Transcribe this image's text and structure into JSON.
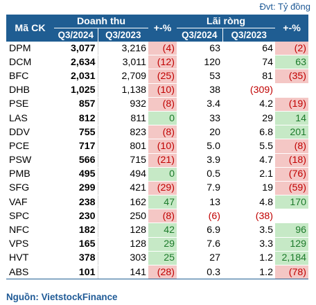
{
  "unit_note": "Đvt: Tỷ đồng",
  "header": {
    "ticker": "Mã CK",
    "revenue_group": "Doanh thu",
    "revenue_change": "+-%",
    "profit_group": "Lãi ròng",
    "profit_change": "+-%",
    "q3_2024": "Q3/2024",
    "q3_2023": "Q3/2023"
  },
  "rows": [
    {
      "ticker": "DPM",
      "rev24": "3,077",
      "rev23": "3,216",
      "rev_chg": "(4)",
      "rev_dir": "neg",
      "np24": "63",
      "np23": "64",
      "np_chg": "(2)",
      "np_dir": "neg"
    },
    {
      "ticker": "DCM",
      "rev24": "2,634",
      "rev23": "3,011",
      "rev_chg": "(12)",
      "rev_dir": "neg",
      "np24": "120",
      "np23": "74",
      "np_chg": "63",
      "np_dir": "pos"
    },
    {
      "ticker": "BFC",
      "rev24": "2,031",
      "rev23": "2,709",
      "rev_chg": "(25)",
      "rev_dir": "neg",
      "np24": "53",
      "np23": "81",
      "np_chg": "(35)",
      "np_dir": "neg"
    },
    {
      "ticker": "DHB",
      "rev24": "1,025",
      "rev23": "1,138",
      "rev_chg": "(10)",
      "rev_dir": "neg",
      "np24": "38",
      "np23": "(309)",
      "np_chg": "",
      "np_dir": "none"
    },
    {
      "ticker": "PSE",
      "rev24": "857",
      "rev23": "932",
      "rev_chg": "(8)",
      "rev_dir": "neg",
      "np24": "3.4",
      "np23": "4.2",
      "np_chg": "(19)",
      "np_dir": "neg"
    },
    {
      "ticker": "LAS",
      "rev24": "812",
      "rev23": "811",
      "rev_chg": "0",
      "rev_dir": "pos",
      "np24": "33",
      "np23": "29",
      "np_chg": "14",
      "np_dir": "pos"
    },
    {
      "ticker": "DDV",
      "rev24": "755",
      "rev23": "823",
      "rev_chg": "(8)",
      "rev_dir": "neg",
      "np24": "20",
      "np23": "6.8",
      "np_chg": "201",
      "np_dir": "pos"
    },
    {
      "ticker": "PCE",
      "rev24": "717",
      "rev23": "801",
      "rev_chg": "(10)",
      "rev_dir": "neg",
      "np24": "5.0",
      "np23": "5.5",
      "np_chg": "(8)",
      "np_dir": "neg"
    },
    {
      "ticker": "PSW",
      "rev24": "566",
      "rev23": "715",
      "rev_chg": "(21)",
      "rev_dir": "neg",
      "np24": "3.9",
      "np23": "4.7",
      "np_chg": "(18)",
      "np_dir": "neg"
    },
    {
      "ticker": "PMB",
      "rev24": "495",
      "rev23": "494",
      "rev_chg": "0",
      "rev_dir": "pos",
      "np24": "0.5",
      "np23": "2.1",
      "np_chg": "(76)",
      "np_dir": "neg"
    },
    {
      "ticker": "SFG",
      "rev24": "299",
      "rev23": "421",
      "rev_chg": "(29)",
      "rev_dir": "neg",
      "np24": "7.9",
      "np23": "19",
      "np_chg": "(59)",
      "np_dir": "neg"
    },
    {
      "ticker": "VAF",
      "rev24": "238",
      "rev23": "162",
      "rev_chg": "47",
      "rev_dir": "pos",
      "np24": "13",
      "np23": "4.8",
      "np_chg": "170",
      "np_dir": "pos"
    },
    {
      "ticker": "SPC",
      "rev24": "230",
      "rev23": "250",
      "rev_chg": "(8)",
      "rev_dir": "neg",
      "np24": "(6)",
      "np23": "(38)",
      "np_chg": "",
      "np_dir": "none"
    },
    {
      "ticker": "NFC",
      "rev24": "182",
      "rev23": "128",
      "rev_chg": "42",
      "rev_dir": "pos",
      "np24": "6.9",
      "np23": "3.5",
      "np_chg": "96",
      "np_dir": "pos"
    },
    {
      "ticker": "VPS",
      "rev24": "165",
      "rev23": "128",
      "rev_chg": "29",
      "rev_dir": "pos",
      "np24": "7.6",
      "np23": "3.3",
      "np_chg": "129",
      "np_dir": "pos"
    },
    {
      "ticker": "HVT",
      "rev24": "378",
      "rev23": "303",
      "rev_chg": "25",
      "rev_dir": "pos",
      "np24": "27",
      "np23": "1.2",
      "np_chg": "2,184",
      "np_dir": "pos"
    },
    {
      "ticker": "ABS",
      "rev24": "101",
      "rev23": "141",
      "rev_chg": "(28)",
      "rev_dir": "neg",
      "np24": "0.3",
      "np23": "1.2",
      "np_chg": "(78)",
      "np_dir": "neg"
    }
  ],
  "source": "Nguồn: VietstockFinance",
  "colors": {
    "header_bg": "#1f5d92",
    "negative_bg": "#f4c7c5",
    "negative_text": "#c00000",
    "positive_bg": "#c6e9c6",
    "positive_text": "#1c7a2a"
  }
}
